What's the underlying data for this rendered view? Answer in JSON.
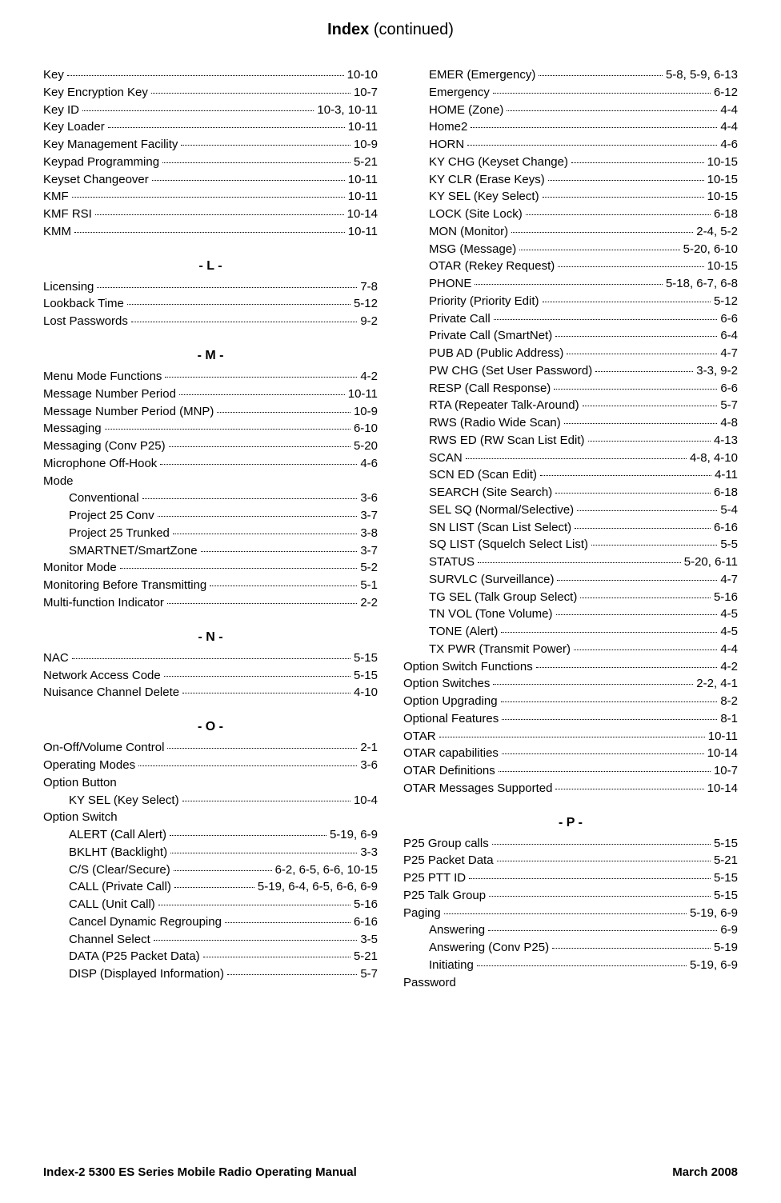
{
  "title_bold": "Index",
  "title_rest": " (continued)",
  "footer_left": "Index-2     5300 ES Series Mobile Radio Operating Manual",
  "footer_right": "March 2008",
  "left": [
    {
      "type": "row",
      "term": "Key",
      "pages": "10-10"
    },
    {
      "type": "row",
      "term": "Key Encryption Key",
      "pages": "10-7"
    },
    {
      "type": "row",
      "term": "Key ID",
      "pages": "10-3, 10-11"
    },
    {
      "type": "row",
      "term": "Key Loader",
      "pages": "10-11"
    },
    {
      "type": "row",
      "term": "Key Management Facility",
      "pages": "10-9"
    },
    {
      "type": "row",
      "term": "Keypad Programming",
      "pages": "5-21"
    },
    {
      "type": "row",
      "term": "Keyset Changeover",
      "pages": "10-11"
    },
    {
      "type": "row",
      "term": "KMF",
      "pages": "10-11"
    },
    {
      "type": "row",
      "term": "KMF RSI",
      "pages": "10-14"
    },
    {
      "type": "row",
      "term": "KMM",
      "pages": "10-11"
    },
    {
      "type": "head",
      "term": "- L -"
    },
    {
      "type": "row",
      "term": "Licensing",
      "pages": "7-8"
    },
    {
      "type": "row",
      "term": "Lookback Time",
      "pages": "5-12"
    },
    {
      "type": "row",
      "term": "Lost Passwords",
      "pages": "9-2"
    },
    {
      "type": "head",
      "term": "- M -"
    },
    {
      "type": "row",
      "term": "Menu Mode Functions",
      "pages": "4-2"
    },
    {
      "type": "row",
      "term": "Message Number Period",
      "pages": "10-11"
    },
    {
      "type": "row",
      "term": "Message Number Period (MNP)",
      "pages": "10-9"
    },
    {
      "type": "row",
      "term": "Messaging",
      "pages": "6-10"
    },
    {
      "type": "row",
      "term": "Messaging (Conv P25)",
      "pages": "5-20"
    },
    {
      "type": "row",
      "term": "Microphone Off-Hook",
      "pages": "4-6"
    },
    {
      "type": "row",
      "term": "Mode",
      "pages": "",
      "noline": true
    },
    {
      "type": "row",
      "term": "Conventional",
      "pages": "3-6",
      "indent": true
    },
    {
      "type": "row",
      "term": "Project 25 Conv",
      "pages": "3-7",
      "indent": true
    },
    {
      "type": "row",
      "term": "Project 25 Trunked",
      "pages": "3-8",
      "indent": true
    },
    {
      "type": "row",
      "term": "SMARTNET/SmartZone",
      "pages": "3-7",
      "indent": true
    },
    {
      "type": "row",
      "term": "Monitor Mode",
      "pages": "5-2"
    },
    {
      "type": "row",
      "term": "Monitoring Before Transmitting",
      "pages": "5-1"
    },
    {
      "type": "row",
      "term": "Multi-function Indicator",
      "pages": "2-2"
    },
    {
      "type": "head",
      "term": "- N -"
    },
    {
      "type": "row",
      "term": "NAC",
      "pages": "5-15"
    },
    {
      "type": "row",
      "term": "Network Access Code",
      "pages": "5-15"
    },
    {
      "type": "row",
      "term": "Nuisance Channel Delete",
      "pages": "4-10"
    },
    {
      "type": "head",
      "term": "- O -"
    },
    {
      "type": "row",
      "term": "On-Off/Volume Control",
      "pages": "2-1"
    },
    {
      "type": "row",
      "term": "Operating Modes",
      "pages": "3-6"
    },
    {
      "type": "row",
      "term": "Option Button",
      "pages": "",
      "noline": true
    },
    {
      "type": "row",
      "term": "KY SEL (Key Select)",
      "pages": "10-4",
      "indent": true
    },
    {
      "type": "row",
      "term": "Option Switch",
      "pages": "",
      "noline": true
    },
    {
      "type": "row",
      "term": "ALERT (Call Alert)",
      "pages": "5-19, 6-9",
      "indent": true
    },
    {
      "type": "row",
      "term": "BKLHT (Backlight)",
      "pages": "3-3",
      "indent": true
    },
    {
      "type": "row",
      "term": "C/S (Clear/Secure)",
      "pages": "6-2, 6-5, 6-6, 10-15",
      "indent": true
    },
    {
      "type": "row",
      "term": "CALL (Private Call)",
      "pages": "5-19, 6-4, 6-5, 6-6, 6-9",
      "indent": true
    },
    {
      "type": "row",
      "term": "CALL (Unit Call)",
      "pages": "5-16",
      "indent": true
    },
    {
      "type": "row",
      "term": "Cancel Dynamic Regrouping",
      "pages": "6-16",
      "indent": true
    },
    {
      "type": "row",
      "term": "Channel Select",
      "pages": "3-5",
      "indent": true
    },
    {
      "type": "row",
      "term": "DATA (P25 Packet Data)",
      "pages": "5-21",
      "indent": true
    },
    {
      "type": "row",
      "term": "DISP (Displayed Information)",
      "pages": "5-7",
      "indent": true
    }
  ],
  "right": [
    {
      "type": "row",
      "term": "EMER (Emergency)",
      "pages": "5-8, 5-9, 6-13",
      "indent": true
    },
    {
      "type": "row",
      "term": "Emergency",
      "pages": "6-12",
      "indent": true
    },
    {
      "type": "row",
      "term": "HOME (Zone)",
      "pages": "4-4",
      "indent": true
    },
    {
      "type": "row",
      "term": "Home2",
      "pages": "4-4",
      "indent": true
    },
    {
      "type": "row",
      "term": "HORN",
      "pages": "4-6",
      "indent": true
    },
    {
      "type": "row",
      "term": "KY CHG (Keyset Change)",
      "pages": "10-15",
      "indent": true
    },
    {
      "type": "row",
      "term": "KY CLR (Erase Keys)",
      "pages": "10-15",
      "indent": true
    },
    {
      "type": "row",
      "term": "KY SEL (Key Select)",
      "pages": "10-15",
      "indent": true
    },
    {
      "type": "row",
      "term": "LOCK (Site Lock)",
      "pages": "6-18",
      "indent": true
    },
    {
      "type": "row",
      "term": "MON (Monitor)",
      "pages": "2-4, 5-2",
      "indent": true
    },
    {
      "type": "row",
      "term": "MSG (Message)",
      "pages": "5-20, 6-10",
      "indent": true
    },
    {
      "type": "row",
      "term": "OTAR (Rekey Request)",
      "pages": "10-15",
      "indent": true
    },
    {
      "type": "row",
      "term": "PHONE",
      "pages": "5-18, 6-7, 6-8",
      "indent": true
    },
    {
      "type": "row",
      "term": "Priority (Priority Edit)",
      "pages": "5-12",
      "indent": true
    },
    {
      "type": "row",
      "term": "Private Call",
      "pages": "6-6",
      "indent": true
    },
    {
      "type": "row",
      "term": "Private Call (SmartNet)",
      "pages": "6-4",
      "indent": true
    },
    {
      "type": "row",
      "term": "PUB AD (Public Address)",
      "pages": "4-7",
      "indent": true
    },
    {
      "type": "row",
      "term": "PW CHG (Set User Password)",
      "pages": "3-3, 9-2",
      "indent": true
    },
    {
      "type": "row",
      "term": "RESP (Call Response)",
      "pages": "6-6",
      "indent": true
    },
    {
      "type": "row",
      "term": "RTA (Repeater Talk-Around)",
      "pages": "5-7",
      "indent": true
    },
    {
      "type": "row",
      "term": "RWS (Radio Wide Scan)",
      "pages": "4-8",
      "indent": true
    },
    {
      "type": "row",
      "term": "RWS ED (RW Scan List Edit)",
      "pages": "4-13",
      "indent": true
    },
    {
      "type": "row",
      "term": "SCAN",
      "pages": "4-8, 4-10",
      "indent": true
    },
    {
      "type": "row",
      "term": "SCN ED (Scan Edit)",
      "pages": "4-11",
      "indent": true
    },
    {
      "type": "row",
      "term": "SEARCH (Site Search)",
      "pages": "6-18",
      "indent": true
    },
    {
      "type": "row",
      "term": "SEL SQ (Normal/Selective)",
      "pages": "5-4",
      "indent": true
    },
    {
      "type": "row",
      "term": "SN LIST (Scan List Select)",
      "pages": "6-16",
      "indent": true
    },
    {
      "type": "row",
      "term": "SQ LIST (Squelch Select List)",
      "pages": "5-5",
      "indent": true
    },
    {
      "type": "row",
      "term": "STATUS",
      "pages": "5-20, 6-11",
      "indent": true
    },
    {
      "type": "row",
      "term": "SURVLC (Surveillance)",
      "pages": "4-7",
      "indent": true
    },
    {
      "type": "row",
      "term": "TG SEL (Talk Group Select)",
      "pages": "5-16",
      "indent": true
    },
    {
      "type": "row",
      "term": "TN VOL (Tone Volume)",
      "pages": "4-5",
      "indent": true
    },
    {
      "type": "row",
      "term": "TONE (Alert)",
      "pages": "4-5",
      "indent": true
    },
    {
      "type": "row",
      "term": "TX PWR (Transmit Power)",
      "pages": "4-4",
      "indent": true
    },
    {
      "type": "row",
      "term": "Option Switch Functions",
      "pages": "4-2"
    },
    {
      "type": "row",
      "term": "Option Switches",
      "pages": "2-2, 4-1"
    },
    {
      "type": "row",
      "term": "Option Upgrading",
      "pages": "8-2"
    },
    {
      "type": "row",
      "term": "Optional Features",
      "pages": "8-1"
    },
    {
      "type": "row",
      "term": "OTAR",
      "pages": "10-11"
    },
    {
      "type": "row",
      "term": "OTAR capabilities",
      "pages": "10-14"
    },
    {
      "type": "row",
      "term": "OTAR Definitions",
      "pages": "10-7"
    },
    {
      "type": "row",
      "term": "OTAR Messages Supported",
      "pages": "10-14"
    },
    {
      "type": "head",
      "term": "- P -"
    },
    {
      "type": "row",
      "term": "P25 Group calls",
      "pages": "5-15"
    },
    {
      "type": "row",
      "term": "P25 Packet Data",
      "pages": "5-21"
    },
    {
      "type": "row",
      "term": "P25 PTT ID",
      "pages": "5-15"
    },
    {
      "type": "row",
      "term": "P25 Talk Group",
      "pages": "5-15"
    },
    {
      "type": "row",
      "term": "Paging",
      "pages": "5-19, 6-9"
    },
    {
      "type": "row",
      "term": "Answering",
      "pages": "6-9",
      "indent": true
    },
    {
      "type": "row",
      "term": "Answering (Conv P25)",
      "pages": "5-19",
      "indent": true
    },
    {
      "type": "row",
      "term": "Initiating",
      "pages": "5-19, 6-9",
      "indent": true
    },
    {
      "type": "row",
      "term": "Password",
      "pages": "",
      "noline": true
    }
  ]
}
